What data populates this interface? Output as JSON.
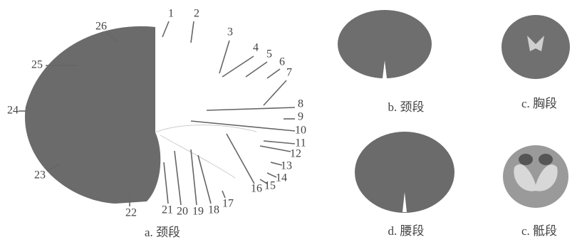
{
  "labels": [
    "1",
    "2",
    "3",
    "4",
    "5",
    "6",
    "7",
    "8",
    "9",
    "10",
    "11",
    "12",
    "13",
    "14",
    "15",
    "16",
    "17",
    "18",
    "19",
    "20",
    "21",
    "22",
    "23",
    "24",
    "25",
    "26"
  ],
  "captions": {
    "a": "a. 颈段",
    "b": "b. 颈段",
    "c": "c. 胸段",
    "d": "d. 腰段",
    "e": "c. 骶段"
  }
}
